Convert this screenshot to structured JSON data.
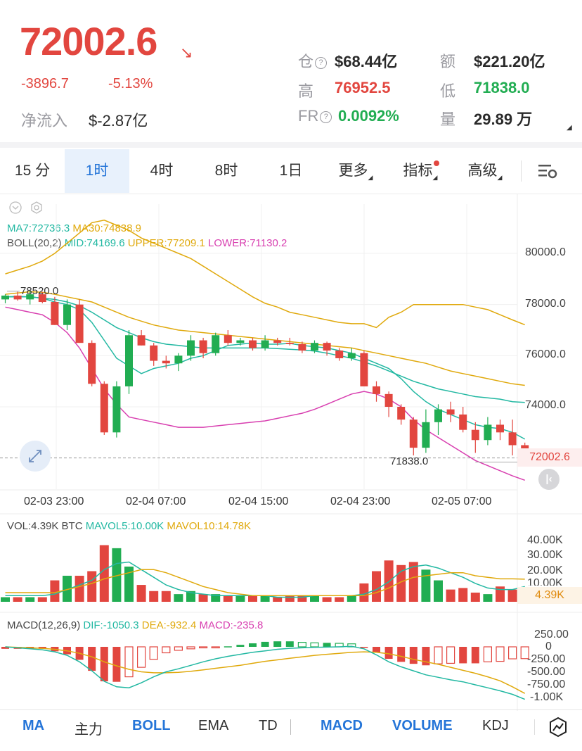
{
  "header": {
    "price": "72002.6",
    "change": "-3896.7",
    "change_pct": "-5.13%",
    "netflow_label": "净流入",
    "netflow_value": "$-2.87亿",
    "oi_label": "仓",
    "oi_value": "$68.44亿",
    "turnover_label": "额",
    "turnover_value": "$221.20亿",
    "high_label": "高",
    "high_value": "76952.5",
    "low_label": "低",
    "low_value": "71838.0",
    "fr_label": "FR",
    "fr_value": "0.0092%",
    "volume_label": "量",
    "volume_value": "29.89 万"
  },
  "tabs": [
    {
      "label": "15 分"
    },
    {
      "label": "1时"
    },
    {
      "label": "4时"
    },
    {
      "label": "8时"
    },
    {
      "label": "1日"
    },
    {
      "label": "更多"
    },
    {
      "label": "指标"
    },
    {
      "label": "高级"
    }
  ],
  "main_chart": {
    "ma_line": {
      "ma7": "MA7:72736.3",
      "ma30": "MA30:74838.9"
    },
    "boll_line": {
      "name": "BOLL(20,2)",
      "mid": "MID:74169.6",
      "upper": "UPPER:77209.1",
      "lower": "LOWER:71130.2"
    },
    "y_ticks": [
      "80000.0",
      "78000.0",
      "76000.0",
      "74000.0"
    ],
    "current_price_tag": "72002.6",
    "max_label": "78520.0",
    "min_label": "71838.0",
    "x_ticks": [
      "02-03 23:00",
      "02-04 07:00",
      "02-04 15:00",
      "02-04 23:00",
      "02-05 07:00"
    ]
  },
  "volume_chart": {
    "title": "VOL:4.39K BTC",
    "mavol5": "MAVOL5:10.00K",
    "mavol10": "MAVOL10:14.78K",
    "y_ticks": [
      "40.00K",
      "30.00K",
      "20.00K",
      "10.00K"
    ],
    "current_tag": "4.39K"
  },
  "macd_chart": {
    "title": "MACD(12,26,9)",
    "dif": "DIF:-1050.3",
    "dea": "DEA:-932.4",
    "macd": "MACD:-235.8",
    "y_ticks": [
      "250.00",
      "0",
      "-250.00",
      "-500.00",
      "-750.00",
      "-1.00K"
    ]
  },
  "bottom_bar": [
    {
      "label": "MA",
      "active": true
    },
    {
      "label": "主力",
      "active": false
    },
    {
      "label": "BOLL",
      "active": true
    },
    {
      "label": "EMA",
      "active": false
    },
    {
      "label": "TD",
      "active": false
    },
    {
      "label": "MACD",
      "active": true
    },
    {
      "label": "VOLUME",
      "active": true
    },
    {
      "label": "KDJ",
      "active": false
    }
  ],
  "chart_data": {
    "type": "candlestick",
    "candles_ohlc": [
      [
        78200,
        78400,
        78050,
        78350
      ],
      [
        78350,
        78500,
        78150,
        78200
      ],
      [
        78200,
        78520,
        78000,
        78400
      ],
      [
        78400,
        78500,
        78050,
        78100
      ],
      [
        78100,
        78300,
        77200,
        77200
      ],
      [
        77200,
        78200,
        77000,
        78000
      ],
      [
        78000,
        78200,
        76500,
        76500
      ],
      [
        76500,
        76600,
        74800,
        74900
      ],
      [
        74900,
        75000,
        72900,
        73000
      ],
      [
        73000,
        75000,
        72800,
        74800
      ],
      [
        74800,
        77000,
        74500,
        76800
      ],
      [
        76800,
        77000,
        76400,
        76400
      ],
      [
        76400,
        76500,
        75600,
        75800
      ],
      [
        75800,
        76000,
        75500,
        75700
      ],
      [
        75700,
        76100,
        75400,
        76000
      ],
      [
        76000,
        76800,
        75800,
        76600
      ],
      [
        76600,
        76700,
        75900,
        76100
      ],
      [
        76100,
        76900,
        76000,
        76800
      ],
      [
        76800,
        77000,
        76400,
        76500
      ],
      [
        76500,
        76700,
        76400,
        76600
      ],
      [
        76600,
        76700,
        76200,
        76300
      ],
      [
        76300,
        76800,
        76200,
        76600
      ],
      [
        76600,
        76700,
        76400,
        76500
      ],
      [
        76500,
        76700,
        76400,
        76450
      ],
      [
        76450,
        76550,
        76100,
        76200
      ],
      [
        76200,
        76600,
        76100,
        76500
      ],
      [
        76500,
        76550,
        76000,
        76200
      ],
      [
        76200,
        76300,
        75800,
        75900
      ],
      [
        75900,
        76300,
        75800,
        76100
      ],
      [
        76100,
        76200,
        74800,
        74800
      ],
      [
        74800,
        75000,
        74200,
        74500
      ],
      [
        74500,
        74600,
        73600,
        74000
      ],
      [
        74000,
        74100,
        73300,
        73500
      ],
      [
        73500,
        73600,
        72100,
        72400
      ],
      [
        72400,
        73900,
        72200,
        73400
      ],
      [
        73400,
        74100,
        72900,
        73900
      ],
      [
        73900,
        74200,
        73400,
        73700
      ],
      [
        73700,
        74000,
        73000,
        73100
      ],
      [
        73100,
        73400,
        72200,
        72700
      ],
      [
        72700,
        73600,
        72500,
        73300
      ],
      [
        73300,
        73500,
        72700,
        73000
      ],
      [
        73000,
        73500,
        72100,
        72500
      ],
      [
        72500,
        72600,
        71838,
        72002.6
      ]
    ],
    "ma7": [
      78300,
      78320,
      78300,
      78250,
      78100,
      78000,
      77800,
      77300,
      76600,
      75900,
      75600,
      75300,
      75500,
      75600,
      75700,
      75900,
      76000,
      76200,
      76400,
      76450,
      76500,
      76450,
      76450,
      76480,
      76400,
      76350,
      76300,
      76200,
      76100,
      75900,
      75700,
      75500,
      75100,
      74600,
      74200,
      73900,
      73700,
      73500,
      73300,
      73200,
      73150,
      73000,
      72736.3
    ],
    "ma30": [
      78400,
      78450,
      78500,
      78480,
      78400,
      78300,
      78200,
      78100,
      77900,
      77700,
      77500,
      77350,
      77200,
      77100,
      77000,
      76950,
      76900,
      76850,
      76800,
      76750,
      76700,
      76650,
      76600,
      76550,
      76500,
      76450,
      76400,
      76350,
      76300,
      76200,
      76100,
      76000,
      75900,
      75800,
      75700,
      75550,
      75400,
      75300,
      75200,
      75100,
      75000,
      74900,
      74838.9
    ],
    "boll_upper": [
      79200,
      79350,
      79500,
      79700,
      80000,
      80400,
      80800,
      81200,
      81300,
      81100,
      80900,
      80600,
      80400,
      80200,
      80000,
      79800,
      79500,
      79200,
      78900,
      78600,
      78300,
      78050,
      77900,
      77700,
      77600,
      77500,
      77400,
      77300,
      77250,
      77250,
      77100,
      77500,
      77700,
      78000,
      78000,
      78000,
      78000,
      78000,
      77900,
      77800,
      77600,
      77400,
      77209.1
    ],
    "boll_mid": [
      78300,
      78300,
      78300,
      78250,
      78200,
      78100,
      77950,
      77700,
      77400,
      77100,
      76900,
      76700,
      76550,
      76450,
      76400,
      76350,
      76300,
      76300,
      76300,
      76300,
      76300,
      76300,
      76280,
      76250,
      76220,
      76180,
      76100,
      76000,
      75900,
      75750,
      75600,
      75400,
      75200,
      75000,
      74850,
      74700,
      74600,
      74500,
      74400,
      74350,
      74300,
      74200,
      74169.6
    ],
    "boll_lower": [
      77900,
      77800,
      77700,
      77600,
      77300,
      76900,
      76300,
      75500,
      74700,
      74100,
      73600,
      73500,
      73400,
      73300,
      73200,
      73200,
      73200,
      73250,
      73300,
      73350,
      73400,
      73450,
      73550,
      73650,
      73750,
      73900,
      74100,
      74300,
      74500,
      74600,
      74500,
      74300,
      74000,
      73500,
      73100,
      72800,
      72500,
      72200,
      71900,
      71700,
      71500,
      71300,
      71130.2
    ],
    "volume_k": [
      3,
      3,
      3,
      3,
      14,
      17,
      17,
      20,
      37,
      35,
      23,
      11,
      7,
      7,
      5,
      7,
      5,
      5,
      4,
      4,
      4,
      4,
      3,
      4,
      4,
      4,
      3,
      3,
      4,
      12,
      20,
      27,
      24,
      26,
      21,
      14,
      8,
      9,
      6,
      5,
      10,
      8,
      4.39
    ],
    "mavol5_k": [
      4,
      4,
      4,
      4,
      5,
      8,
      11,
      14,
      21,
      25,
      26,
      21,
      16,
      11,
      8,
      6,
      5,
      4,
      4,
      4,
      4,
      4,
      3,
      3,
      3,
      4,
      4,
      4,
      4,
      5,
      8,
      13,
      20,
      23,
      24,
      22,
      19,
      16,
      12,
      9,
      8,
      8,
      10.0
    ],
    "mavol10_k": [
      6,
      6,
      6,
      6,
      6,
      8,
      10,
      12,
      15,
      17,
      19,
      21,
      21,
      19,
      16,
      13,
      10,
      8,
      6,
      5,
      4,
      4,
      4,
      4,
      4,
      4,
      4,
      4,
      4,
      4,
      6,
      9,
      13,
      16,
      17,
      18,
      19,
      19,
      17,
      16,
      15,
      15,
      14.78
    ],
    "dif": [
      0,
      -20,
      -40,
      -60,
      -100,
      -170,
      -300,
      -480,
      -690,
      -800,
      -820,
      -720,
      -600,
      -500,
      -440,
      -370,
      -300,
      -240,
      -190,
      -150,
      -110,
      -80,
      -50,
      -30,
      -20,
      -10,
      -5,
      0,
      10,
      -40,
      -160,
      -300,
      -400,
      -480,
      -560,
      -610,
      -660,
      -700,
      -760,
      -820,
      -880,
      -950,
      -1050.3
    ],
    "dea": [
      0,
      -10,
      -20,
      -30,
      -50,
      -80,
      -130,
      -200,
      -300,
      -380,
      -450,
      -500,
      -520,
      -520,
      -510,
      -490,
      -460,
      -430,
      -400,
      -370,
      -330,
      -290,
      -260,
      -230,
      -200,
      -170,
      -150,
      -130,
      -110,
      -100,
      -110,
      -140,
      -190,
      -250,
      -300,
      -350,
      -410,
      -470,
      -530,
      -600,
      -680,
      -800,
      -932.4
    ],
    "macd_hist": [
      -40,
      -40,
      -40,
      -40,
      -90,
      -150,
      -260,
      -480,
      -690,
      -700,
      -600,
      -410,
      -250,
      -120,
      -70,
      -40,
      -20,
      -10,
      10,
      40,
      70,
      100,
      110,
      110,
      90,
      80,
      80,
      70,
      60,
      -15,
      -110,
      -240,
      -300,
      -340,
      -370,
      -340,
      -330,
      -330,
      -330,
      -300,
      -290,
      -240,
      -235.8
    ],
    "price_ylim": [
      71000,
      81200
    ],
    "volume_ylim": [
      0,
      44
    ],
    "macd_ylim": [
      -1150,
      350
    ]
  }
}
